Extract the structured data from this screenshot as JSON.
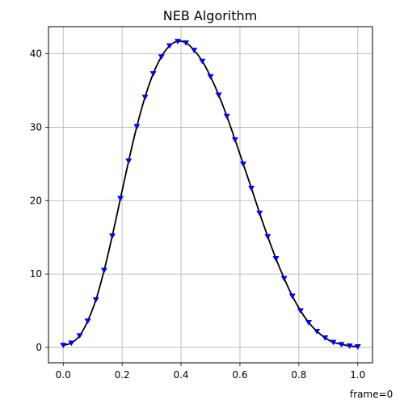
{
  "chart_data": {
    "type": "line",
    "title": "NEB Algorithm",
    "xlabel": "",
    "ylabel": "",
    "xlim": [
      -0.05,
      1.05
    ],
    "ylim": [
      -2.1,
      43.7
    ],
    "xticks": [
      "0.0",
      "0.2",
      "0.4",
      "0.6",
      "0.8",
      "1.0"
    ],
    "yticks": [
      "0",
      "10",
      "20",
      "30",
      "40"
    ],
    "grid": true,
    "annotation": "frame=0",
    "series": [
      {
        "style": "line",
        "color": "#000000",
        "x": [
          0.0,
          0.0278,
          0.0556,
          0.0833,
          0.1111,
          0.1389,
          0.1667,
          0.1944,
          0.2222,
          0.25,
          0.2778,
          0.3056,
          0.3333,
          0.3611,
          0.3889,
          0.4167,
          0.4444,
          0.4722,
          0.5,
          0.5278,
          0.5556,
          0.5833,
          0.6111,
          0.6389,
          0.6667,
          0.6944,
          0.7222,
          0.75,
          0.7778,
          0.8056,
          0.8333,
          0.8611,
          0.8889,
          0.9167,
          0.9444,
          0.9722,
          1.0
        ],
        "y": [
          0.3,
          0.6,
          1.6,
          3.6,
          6.5,
          10.5,
          15.2,
          20.3,
          25.4,
          30.1,
          34.1,
          37.3,
          39.6,
          41.1,
          41.7,
          41.5,
          40.5,
          39.0,
          36.9,
          34.4,
          31.5,
          28.3,
          25.0,
          21.7,
          18.3,
          15.1,
          12.1,
          9.4,
          7.0,
          5.0,
          3.4,
          2.2,
          1.3,
          0.7,
          0.4,
          0.2,
          0.1
        ]
      },
      {
        "style": "marker-triangle-down",
        "color": "#0000ff",
        "x": [
          0.0,
          0.0278,
          0.0556,
          0.0833,
          0.1111,
          0.1389,
          0.1667,
          0.1944,
          0.2222,
          0.25,
          0.2778,
          0.3056,
          0.3333,
          0.3611,
          0.3889,
          0.4167,
          0.4444,
          0.4722,
          0.5,
          0.5278,
          0.5556,
          0.5833,
          0.6111,
          0.6389,
          0.6667,
          0.6944,
          0.7222,
          0.75,
          0.7778,
          0.8056,
          0.8333,
          0.8611,
          0.8889,
          0.9167,
          0.9444,
          0.9722,
          1.0
        ],
        "y": [
          0.3,
          0.6,
          1.6,
          3.6,
          6.5,
          10.5,
          15.2,
          20.3,
          25.4,
          30.1,
          34.1,
          37.3,
          39.6,
          41.1,
          41.7,
          41.5,
          40.5,
          39.0,
          36.9,
          34.4,
          31.5,
          28.3,
          25.0,
          21.7,
          18.3,
          15.1,
          12.1,
          9.4,
          7.0,
          5.0,
          3.4,
          2.2,
          1.3,
          0.7,
          0.4,
          0.2,
          0.1
        ]
      }
    ]
  }
}
